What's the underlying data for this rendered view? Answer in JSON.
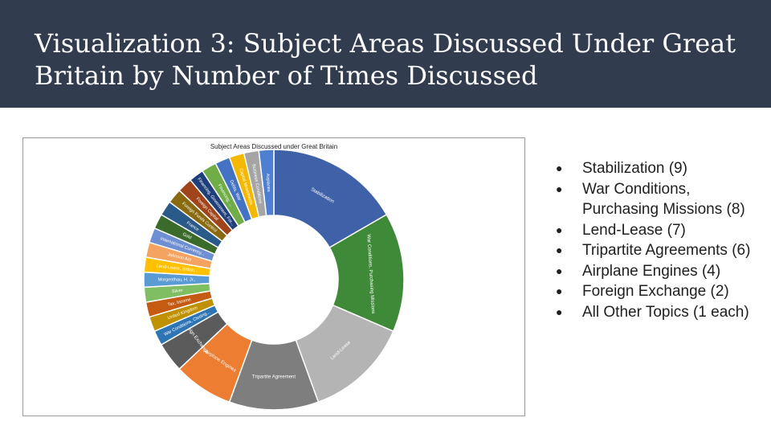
{
  "slide": {
    "title": "Visualization 3: Subject Areas Discussed Under Great Britain by Number of Times Discussed"
  },
  "legend": [
    {
      "label": "Stabilization",
      "count": "(9)"
    },
    {
      "label": "War Conditions, Purchasing Missions",
      "count": "(8)"
    },
    {
      "label": "Lend-Lease",
      "count": "(7)"
    },
    {
      "label": "Tripartite Agreements",
      "count": "(6)"
    },
    {
      "label": "Airplane Engines",
      "count": "(4)"
    },
    {
      "label": "Foreign Exchange",
      "count": "(2)"
    },
    {
      "label": "All Other Topics",
      "count": "(1 each)"
    }
  ],
  "colors": {
    "header_bg": "#323c4f",
    "title_text": "#ffffff"
  },
  "chart_data": {
    "type": "pie",
    "variant": "donut",
    "title": "Subject Areas Discussed under Great Britain",
    "legend": "none",
    "categories": [
      "Stabilization",
      "War Conditions, Purchasing Missions",
      "Lend-Lease",
      "Tripartite Agreement",
      "Airplane Engines",
      "Foreign Exchange",
      "War Conditions, Closing...",
      "United Kingdom",
      "Tax, Income",
      "Silver",
      "Morgenthau, H. Jr.,",
      "Lend-Lease, British...",
      "Johnson Act",
      "International Currency...",
      "Gold",
      "France",
      "Foreign Funds Control",
      "Foreign Capital",
      "Financing, Government, For...",
      "Financing, ...",
      "Debts, War",
      "Capital Movements",
      "Business Conditions",
      "Airplanes"
    ],
    "values": [
      9,
      8,
      7,
      6,
      4,
      2,
      1,
      1,
      1,
      1,
      1,
      1,
      1,
      1,
      1,
      1,
      1,
      1,
      1,
      1,
      1,
      1,
      1,
      1
    ],
    "colors": [
      "#3e61a8",
      "#3f8a38",
      "#b4b4b4",
      "#7e7e7e",
      "#ec7d31",
      "#5b5b5b",
      "#2e75b6",
      "#bf9000",
      "#c55a11",
      "#7fbe62",
      "#5b9bd5",
      "#ffc000",
      "#f4a460",
      "#6f8fd3",
      "#3a6b2a",
      "#2a5a8a",
      "#8a6a10",
      "#a0441c",
      "#1f3f7a",
      "#70ad47",
      "#4472c4",
      "#f5b800",
      "#a5a5a5",
      "#4f7fd0"
    ]
  }
}
